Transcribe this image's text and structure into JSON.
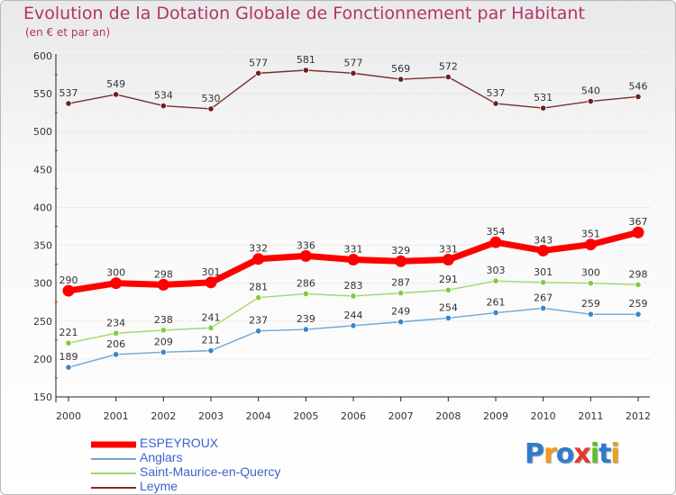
{
  "title": "Evolution de la Dotation Globale de Fonctionnement par Habitant",
  "subtitle": "(en € et par an)",
  "logo": {
    "letters": [
      "P",
      "r",
      "o",
      "x",
      "i",
      "t",
      "i"
    ],
    "colors": [
      "#2e7bcf",
      "#f29a1f",
      "#2e7bcf",
      "#e23b2c",
      "#5bbf2a",
      "#2e7bcf",
      "#e8a21c"
    ]
  },
  "chart_data": {
    "type": "line",
    "title": "Evolution de la Dotation Globale de Fonctionnement par Habitant",
    "subtitle": "(en € et par an)",
    "xlabel": "",
    "ylabel": "",
    "ylim": [
      150,
      600
    ],
    "yticks": [
      150,
      200,
      250,
      300,
      350,
      400,
      450,
      500,
      550,
      600
    ],
    "categories": [
      "2000",
      "2001",
      "2002",
      "2003",
      "2004",
      "2005",
      "2006",
      "2007",
      "2008",
      "2009",
      "2010",
      "2011",
      "2012"
    ],
    "legend_position": "bottom-left",
    "series": [
      {
        "name": "ESPEYROUX",
        "color": "#ff0000",
        "bold": true,
        "values": [
          290,
          300,
          298,
          301,
          332,
          336,
          331,
          329,
          331,
          354,
          343,
          351,
          367
        ]
      },
      {
        "name": "Anglars",
        "color": "#6da6d6",
        "dot": "#3a86c8",
        "bold": false,
        "values": [
          189,
          206,
          209,
          211,
          237,
          239,
          244,
          249,
          254,
          261,
          267,
          259,
          259
        ]
      },
      {
        "name": "Saint-Maurice-en-Quercy",
        "color": "#9ed96e",
        "dot": "#7fcc3f",
        "bold": false,
        "values": [
          221,
          234,
          238,
          241,
          281,
          286,
          283,
          287,
          291,
          303,
          301,
          300,
          298
        ]
      },
      {
        "name": "Leyme",
        "color": "#7a2e2e",
        "dot": "#6e2020",
        "bold": false,
        "values": [
          537,
          549,
          534,
          530,
          577,
          581,
          577,
          569,
          572,
          537,
          531,
          540,
          546
        ]
      }
    ]
  }
}
